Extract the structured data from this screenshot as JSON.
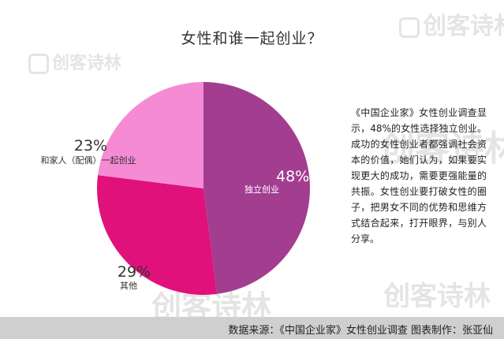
{
  "chart_data": {
    "type": "pie",
    "title": "女性和谁一起创业？",
    "slices": [
      {
        "percent": "48%",
        "label": "独立创业",
        "value": 48,
        "color": "#a23d90"
      },
      {
        "percent": "29%",
        "label": "其他",
        "value": 29,
        "color": "#e0117a"
      },
      {
        "percent": "23%",
        "label": "和家人（配偶）一起创业",
        "value": 23,
        "color": "#f58bd5"
      }
    ]
  },
  "note": "《中国企业家》女性创业调查显示，48%的女性选择独立创业。成功的女性创业者都强调社会资本的价值，她们认为，如果要实现更大的成功，需要更强能量的共振。女性创业要打破女性的圈子，把男女不同的优势和思维方式结合起来，打开眼界，与别人分享。",
  "footer": "数据来源：《中国企业家》女性创业调查   图表制作：张亚仙",
  "watermark": {
    "text": "创客诗林"
  }
}
